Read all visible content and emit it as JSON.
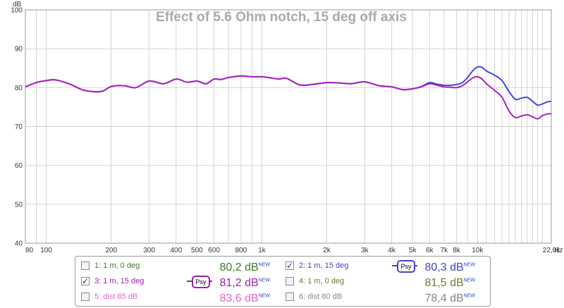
{
  "chart_data": {
    "type": "line",
    "title": "Effect of 5.6 Ohm notch, 15 deg off axis",
    "ylabel": "dB",
    "xlabel": "Hz",
    "x_scale": "log",
    "xlim": [
      80,
      22000
    ],
    "ylim": [
      40,
      100
    ],
    "y_ticks": [
      40,
      50,
      60,
      70,
      80,
      90,
      100
    ],
    "x_ticks": [
      {
        "value": 80,
        "label": "80"
      },
      {
        "value": 100,
        "label": "100"
      },
      {
        "value": 200,
        "label": "200"
      },
      {
        "value": 300,
        "label": "300"
      },
      {
        "value": 400,
        "label": "400"
      },
      {
        "value": 500,
        "label": "500"
      },
      {
        "value": 600,
        "label": "600"
      },
      {
        "value": 800,
        "label": "800"
      },
      {
        "value": 1000,
        "label": "1k"
      },
      {
        "value": 2000,
        "label": "2k"
      },
      {
        "value": 3000,
        "label": "3k"
      },
      {
        "value": 4000,
        "label": "4k"
      },
      {
        "value": 5000,
        "label": "5k"
      },
      {
        "value": 6000,
        "label": "6k"
      },
      {
        "value": 7000,
        "label": "7k"
      },
      {
        "value": 8000,
        "label": "8k"
      },
      {
        "value": 10000,
        "label": "10k"
      },
      {
        "value": 22000,
        "label": "22,0k"
      }
    ],
    "grid": true,
    "series": [
      {
        "name": "2: 1 m, 15 deg",
        "color": "#4444e6",
        "x": [
          80,
          90,
          100,
          110,
          130,
          150,
          180,
          200,
          230,
          260,
          300,
          350,
          400,
          450,
          500,
          550,
          600,
          650,
          700,
          800,
          900,
          1000,
          1100,
          1200,
          1300,
          1500,
          1700,
          2000,
          2300,
          2600,
          3000,
          3500,
          4000,
          4500,
          5000,
          5500,
          6000,
          6500,
          7000,
          7500,
          8000,
          8500,
          9000,
          9500,
          10000,
          10500,
          11000,
          12000,
          13000,
          14000,
          15000,
          16000,
          17000,
          18000,
          19000,
          20000,
          21000,
          22000
        ],
        "values": [
          80.2,
          81.3,
          81.8,
          82.0,
          80.8,
          79.3,
          79.0,
          80.3,
          80.5,
          80.0,
          81.7,
          81.0,
          82.2,
          81.4,
          81.7,
          81.0,
          82.2,
          82.1,
          82.6,
          83.0,
          82.8,
          82.8,
          82.5,
          82.2,
          82.4,
          80.7,
          80.8,
          81.3,
          81.2,
          81.0,
          81.5,
          80.5,
          80.2,
          79.5,
          79.7,
          80.3,
          81.3,
          80.9,
          80.6,
          80.6,
          80.8,
          81.3,
          82.6,
          84.3,
          85.3,
          85.2,
          84.3,
          83.2,
          81.8,
          79.0,
          77.0,
          77.3,
          77.5,
          76.5,
          75.5,
          75.8,
          76.3,
          76.5
        ]
      },
      {
        "name": "3: 1 m, 15 deg",
        "color": "#aa22bb",
        "x": [
          80,
          90,
          100,
          110,
          130,
          150,
          180,
          200,
          230,
          260,
          300,
          350,
          400,
          450,
          500,
          550,
          600,
          650,
          700,
          800,
          900,
          1000,
          1100,
          1200,
          1300,
          1500,
          1700,
          2000,
          2300,
          2600,
          3000,
          3500,
          4000,
          4500,
          5000,
          5500,
          6000,
          6500,
          7000,
          7500,
          8000,
          8500,
          9000,
          9500,
          10000,
          10500,
          11000,
          12000,
          13000,
          14000,
          15000,
          16000,
          17000,
          18000,
          19000,
          20000,
          21000,
          22000
        ],
        "values": [
          80.2,
          81.3,
          81.8,
          82.0,
          80.8,
          79.3,
          79.0,
          80.3,
          80.5,
          80.0,
          81.7,
          81.0,
          82.2,
          81.4,
          81.7,
          81.0,
          82.2,
          82.1,
          82.6,
          83.0,
          82.8,
          82.8,
          82.5,
          82.2,
          82.4,
          80.7,
          80.8,
          81.3,
          81.2,
          81.0,
          81.5,
          80.5,
          80.2,
          79.5,
          79.7,
          80.2,
          81.0,
          80.6,
          80.2,
          80.1,
          80.0,
          80.5,
          81.5,
          82.5,
          82.8,
          82.2,
          81.0,
          79.3,
          77.5,
          74.0,
          72.3,
          72.7,
          73.0,
          72.5,
          72.0,
          72.8,
          73.2,
          73.3
        ]
      }
    ]
  },
  "legend": {
    "row1": {
      "left": {
        "label": "1: 1 m, 0 deg",
        "value": "80,2 dB",
        "sup": "NEW",
        "checked": false,
        "color": "#3a7a2a"
      },
      "right": {
        "label": "2: 1 m, 15 deg",
        "value": "80,3 dB",
        "sup": "NEW",
        "checked": true,
        "color": "#4444cc",
        "badge": "Psy"
      }
    },
    "row2": {
      "left": {
        "label": "3: 1 m, 15 deg",
        "value": "81,2 dB",
        "sup": "NEW",
        "checked": true,
        "color": "#9922aa",
        "badge": "Psy"
      },
      "right": {
        "label": "4: 1 m, 0 deg",
        "value": "81,5 dB",
        "sup": "NEW",
        "checked": false,
        "color": "#777733"
      }
    },
    "row3": {
      "left": {
        "label": "5: dist 85 dB",
        "value": "83,6 dB",
        "sup": "NEW",
        "checked": false,
        "color": "#dd66cc"
      },
      "right": {
        "label": "6: dist 80 dB",
        "value": "78,4 dB",
        "sup": "NEW",
        "checked": false,
        "color": "#888888"
      }
    }
  }
}
